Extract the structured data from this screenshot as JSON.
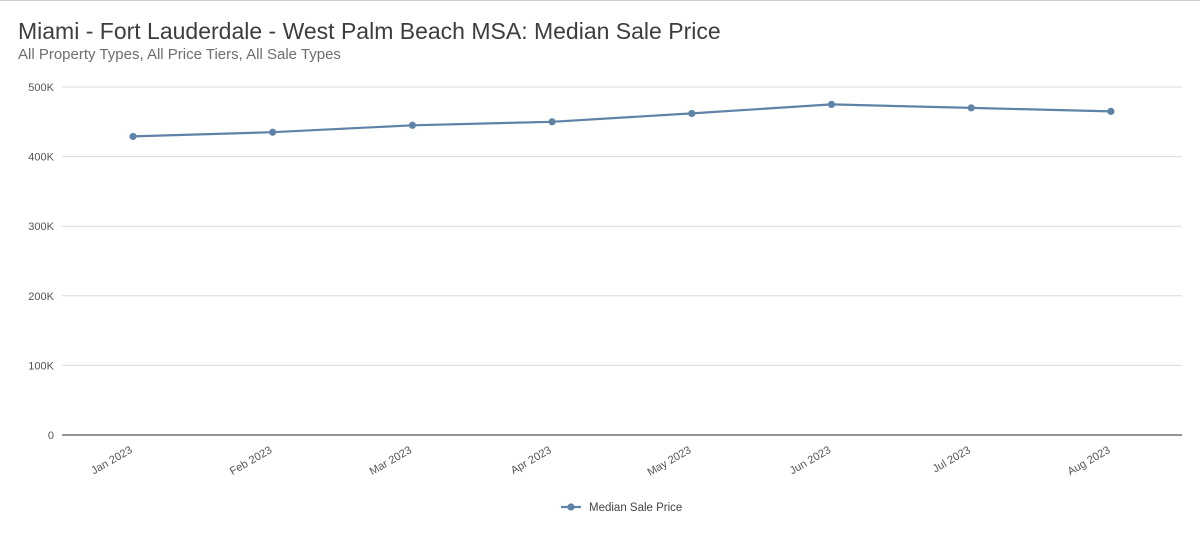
{
  "chart_data": {
    "type": "line",
    "title": "Miami - Fort Lauderdale - West Palm Beach MSA: Median Sale Price",
    "subtitle": "All Property Types, All Price Tiers, All Sale Types",
    "categories": [
      "Jan 2023",
      "Feb 2023",
      "Mar 2023",
      "Apr 2023",
      "May 2023",
      "Jun 2023",
      "Jul 2023",
      "Aug 2023"
    ],
    "series": [
      {
        "name": "Median Sale Price",
        "values": [
          429000,
          435000,
          445000,
          450000,
          462000,
          475000,
          470000,
          465000
        ],
        "color": "#5f83a6"
      }
    ],
    "ylim": [
      0,
      500000
    ],
    "yticks": [
      0,
      100000,
      200000,
      300000,
      400000,
      500000
    ],
    "ytick_labels": [
      "0",
      "100K",
      "200K",
      "300K",
      "400K",
      "500K"
    ],
    "grid": true,
    "legend_position": "bottom-center"
  }
}
